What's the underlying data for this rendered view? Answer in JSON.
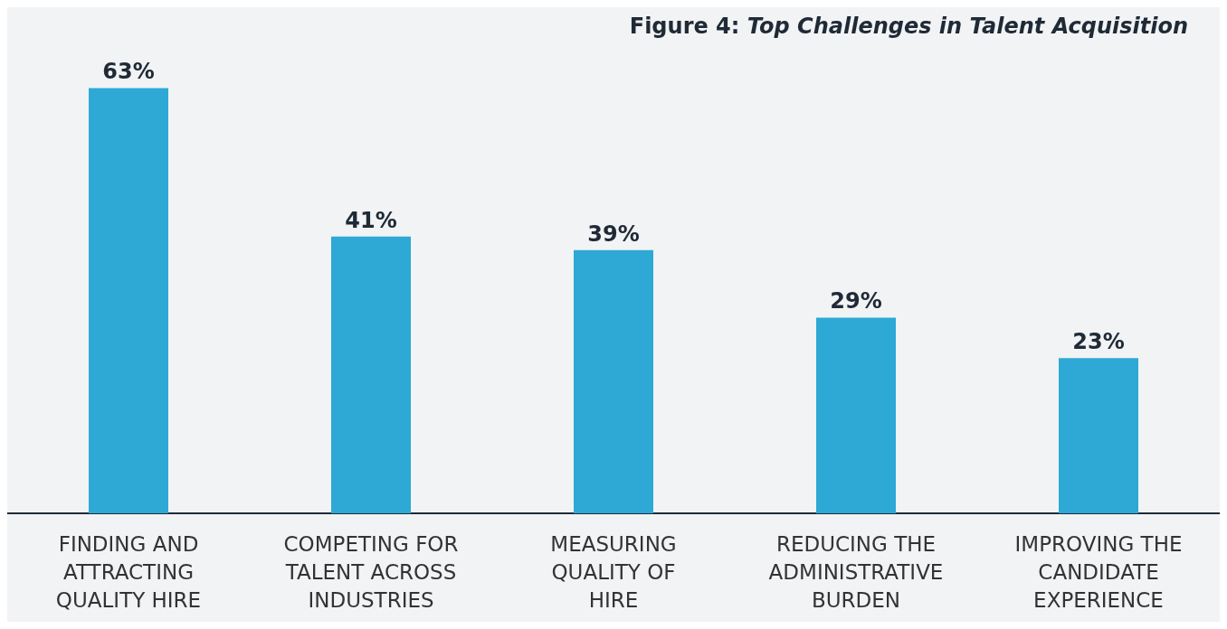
{
  "chart_data": {
    "type": "bar",
    "title": "Figure 4: Top Challenges in Talent Acquisition",
    "categories": [
      "FINDING AND\nATTRACTING\nQUALITY HIRE",
      "COMPETING FOR\nTALENT ACROSS\nINDUSTRIES",
      "MEASURING\nQUALITY OF\nHIRE",
      "REDUCING THE\nADMINISTRATIVE\nBURDEN",
      "IMPROVING THE\nCANDIDATE\nEXPERIENCE"
    ],
    "values": [
      63,
      41,
      39,
      29,
      23
    ],
    "value_labels": [
      "63%",
      "41%",
      "39%",
      "29%",
      "23%"
    ],
    "color": "#2ea9d6"
  }
}
